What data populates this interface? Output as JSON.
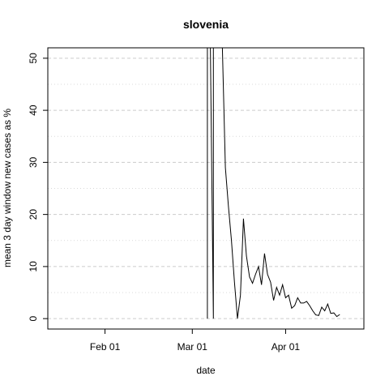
{
  "chart_data": {
    "type": "line",
    "title": "slovenia",
    "xlabel": "date",
    "ylabel": "mean  3  day window new cases as %",
    "x_ticks": [
      "2020-02-01",
      "2020-03-01",
      "2020-04-01"
    ],
    "x_tick_labels": [
      "Feb 01",
      "Mar 01",
      "Apr 01"
    ],
    "y_ticks": [
      0,
      10,
      20,
      30,
      40,
      50
    ],
    "xlim": [
      "2020-01-13",
      "2020-04-27"
    ],
    "ylim": [
      -2,
      52
    ],
    "grid": {
      "major_y": [
        0,
        10,
        20,
        30,
        40,
        50
      ],
      "minor_y": [
        5,
        15,
        25,
        35,
        45
      ],
      "style": "dashed"
    },
    "series": [
      {
        "color": "#000000",
        "points": [
          [
            "2020-03-06",
            0
          ],
          [
            "2020-03-06",
            52
          ],
          [
            "2020-03-07",
            52
          ],
          [
            "2020-03-08",
            0
          ],
          [
            "2020-03-08",
            52
          ],
          [
            "2020-03-11",
            52
          ],
          [
            "2020-03-12",
            29
          ],
          [
            "2020-03-13",
            21.5
          ],
          [
            "2020-03-14",
            15
          ],
          [
            "2020-03-15",
            7
          ],
          [
            "2020-03-16",
            0
          ],
          [
            "2020-03-17",
            4.5
          ],
          [
            "2020-03-18",
            19.2
          ],
          [
            "2020-03-19",
            12
          ],
          [
            "2020-03-20",
            8
          ],
          [
            "2020-03-21",
            6.8
          ],
          [
            "2020-03-22",
            8.5
          ],
          [
            "2020-03-23",
            10
          ],
          [
            "2020-03-24",
            6.5
          ],
          [
            "2020-03-25",
            12.5
          ],
          [
            "2020-03-26",
            8.5
          ],
          [
            "2020-03-27",
            7
          ],
          [
            "2020-03-28",
            3.5
          ],
          [
            "2020-03-29",
            6
          ],
          [
            "2020-03-30",
            4.5
          ],
          [
            "2020-03-31",
            6.5
          ],
          [
            "2020-04-01",
            4
          ],
          [
            "2020-04-02",
            4.5
          ],
          [
            "2020-04-03",
            2
          ],
          [
            "2020-04-04",
            2.5
          ],
          [
            "2020-04-05",
            4
          ],
          [
            "2020-04-06",
            3
          ],
          [
            "2020-04-07",
            3
          ],
          [
            "2020-04-08",
            3.3
          ],
          [
            "2020-04-09",
            2.5
          ],
          [
            "2020-04-10",
            1.5
          ],
          [
            "2020-04-11",
            0.7
          ],
          [
            "2020-04-12",
            0.6
          ],
          [
            "2020-04-13",
            2.2
          ],
          [
            "2020-04-14",
            1.5
          ],
          [
            "2020-04-15",
            2.8
          ],
          [
            "2020-04-16",
            1
          ],
          [
            "2020-04-17",
            1.1
          ],
          [
            "2020-04-18",
            0.4
          ],
          [
            "2020-04-19",
            0.8
          ]
        ]
      }
    ]
  }
}
